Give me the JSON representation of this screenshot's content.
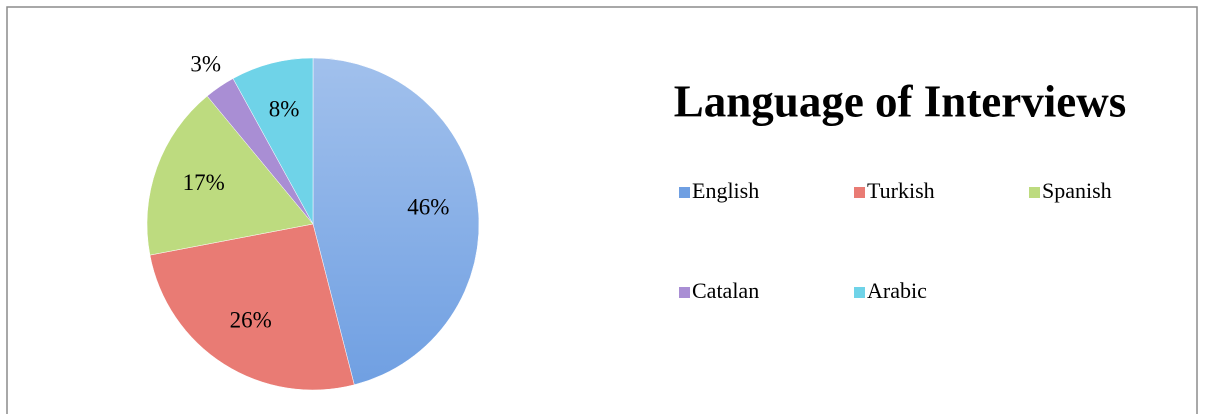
{
  "chart_data": {
    "type": "pie",
    "title": "Language of Interviews",
    "categories": [
      "English",
      "Turkish",
      "Spanish",
      "Catalan",
      "Arabic"
    ],
    "values": [
      46,
      26,
      17,
      3,
      8
    ],
    "value_labels": [
      "46%",
      "26%",
      "17%",
      "3%",
      "8%"
    ],
    "colors": [
      "#6f9fe2",
      "#e97b74",
      "#bddb7f",
      "#a98ed4",
      "#6fd3e8"
    ],
    "legend": "right"
  }
}
